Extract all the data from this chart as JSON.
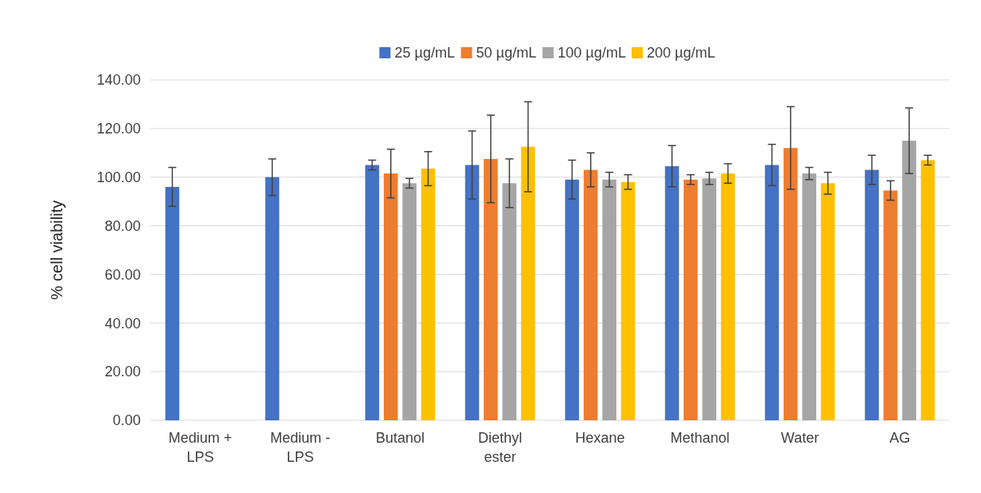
{
  "chart_data": {
    "type": "bar",
    "ylabel": "% cell viability",
    "categories": [
      "Medium + LPS",
      "Medium - LPS",
      "Butanol",
      "Diethyl ester",
      "Hexane",
      "Methanol",
      "Water",
      "AG"
    ],
    "series": [
      {
        "name": "25 µg/mL",
        "color": "#4472c4",
        "values": [
          96,
          100,
          105,
          105,
          99,
          104.5,
          105,
          103
        ],
        "errors": [
          8,
          7.5,
          2,
          14,
          8,
          8.5,
          8.5,
          6
        ]
      },
      {
        "name": "50 µg/mL",
        "color": "#ed7d31",
        "values": [
          null,
          null,
          101.5,
          107.5,
          103,
          99,
          112,
          94.5
        ],
        "errors": [
          null,
          null,
          10,
          18,
          7,
          2,
          17,
          4
        ]
      },
      {
        "name": "100 µg/mL",
        "color": "#a5a5a5",
        "values": [
          null,
          null,
          97.5,
          97.5,
          99,
          99.5,
          101.5,
          115
        ],
        "errors": [
          null,
          null,
          2,
          10,
          3,
          2.5,
          2.5,
          13.5
        ]
      },
      {
        "name": "200 µg/mL",
        "color": "#ffc000",
        "values": [
          null,
          null,
          103.5,
          112.5,
          98,
          101.5,
          97.5,
          107
        ],
        "errors": [
          null,
          null,
          7,
          18.5,
          3,
          4,
          4.5,
          2
        ]
      }
    ],
    "ylim": [
      0,
      140
    ],
    "yticks": [
      {
        "value": 0,
        "label": "0.00"
      },
      {
        "value": 20,
        "label": "20.00"
      },
      {
        "value": 40,
        "label": "40.00"
      },
      {
        "value": 60,
        "label": "60.00"
      },
      {
        "value": 80,
        "label": "80.00"
      },
      {
        "value": 100,
        "label": "100.00"
      },
      {
        "value": 120,
        "label": "120.00"
      },
      {
        "value": 140,
        "label": "140.00"
      }
    ],
    "grid": "y",
    "legend": "top"
  }
}
